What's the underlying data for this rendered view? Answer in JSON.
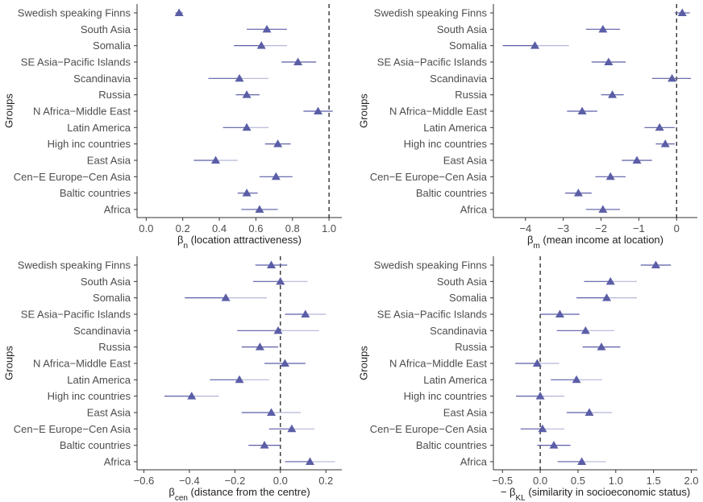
{
  "figure": {
    "y_axis_title": "Groups",
    "groups": [
      "Swedish speaking Finns",
      "South Asia",
      "Somalia",
      "SE Asia−Pacific Islands",
      "Scandinavia",
      "Russia",
      "N Africa−Middle East",
      "Latin America",
      "High inc countries",
      "East Asia",
      "Cen−E Europe−Cen Asia",
      "Baltic countries",
      "Africa"
    ],
    "colors": {
      "marker": "#5b5ea6",
      "ci_line": "#5b5ea6",
      "ci_line_light": "#b4b6d8"
    }
  },
  "chart_data": [
    {
      "type": "scatter",
      "panel": "top-left",
      "xlabel_prefix": "β",
      "xlabel_sub": "n",
      "xlabel_text": " (location attractiveness)",
      "ylabel": "Groups",
      "xlim": [
        -0.05,
        1.07
      ],
      "xticks": [
        0,
        0.2,
        0.4,
        0.6,
        0.8,
        1
      ],
      "xtick_labels": [
        "0.0",
        "0.2",
        "0.4",
        "0.6",
        "0.8",
        "1.0"
      ],
      "reference_line": 1.0,
      "categories": [
        "Swedish speaking Finns",
        "South Asia",
        "Somalia",
        "SE Asia−Pacific Islands",
        "Scandinavia",
        "Russia",
        "N Africa−Middle East",
        "Latin America",
        "High inc countries",
        "East Asia",
        "Cen−E Europe−Cen Asia",
        "Baltic countries",
        "Africa"
      ],
      "estimates": [
        0.18,
        0.66,
        0.63,
        0.83,
        0.51,
        0.55,
        0.94,
        0.55,
        0.72,
        0.38,
        0.71,
        0.55,
        0.62
      ],
      "lower": [
        0.16,
        0.55,
        0.48,
        0.74,
        0.34,
        0.49,
        0.86,
        0.42,
        0.65,
        0.26,
        0.62,
        0.5,
        0.52
      ],
      "upper": [
        0.2,
        0.77,
        0.77,
        0.93,
        0.67,
        0.62,
        1.02,
        0.67,
        0.79,
        0.5,
        0.8,
        0.61,
        0.72
      ]
    },
    {
      "type": "scatter",
      "panel": "top-right",
      "xlabel_prefix": "β",
      "xlabel_sub": "m",
      "xlabel_text": " (mean income at location)",
      "ylabel": "Groups",
      "xlim": [
        -4.85,
        0.55
      ],
      "xticks": [
        -4,
        -3,
        -2,
        -1,
        0
      ],
      "xtick_labels": [
        "−4",
        "−3",
        "−2",
        "−1",
        "0"
      ],
      "reference_line": 0,
      "categories": [
        "Swedish speaking Finns",
        "South Asia",
        "Somalia",
        "SE Asia−Pacific Islands",
        "Scandinavia",
        "Russia",
        "N Africa−Middle East",
        "Latin America",
        "High inc countries",
        "East Asia",
        "Cen−E Europe−Cen Asia",
        "Baltic countries",
        "Africa"
      ],
      "estimates": [
        0.15,
        -1.95,
        -3.75,
        -1.8,
        -0.12,
        -1.7,
        -2.5,
        -0.45,
        -0.3,
        -1.05,
        -1.75,
        -2.6,
        -1.95
      ],
      "lower": [
        -0.05,
        -2.4,
        -4.6,
        -2.25,
        -0.65,
        -2.0,
        -2.9,
        -0.85,
        -0.55,
        -1.45,
        -2.15,
        -2.95,
        -2.4
      ],
      "upper": [
        0.35,
        -1.5,
        -2.85,
        -1.35,
        0.38,
        -1.4,
        -2.1,
        -0.05,
        -0.05,
        -0.65,
        -1.35,
        -2.25,
        -1.5
      ]
    },
    {
      "type": "scatter",
      "panel": "bottom-left",
      "xlabel_prefix": "β",
      "xlabel_sub": "cen",
      "xlabel_text": " (distance from the centre)",
      "ylabel": "Groups",
      "xlim": [
        -0.63,
        0.27
      ],
      "xticks": [
        -0.6,
        -0.4,
        -0.2,
        0,
        0.2
      ],
      "xtick_labels": [
        "−0.6",
        "−0.4",
        "−0.2",
        "0.0",
        "0.2"
      ],
      "reference_line": 0,
      "categories": [
        "Swedish speaking Finns",
        "South Asia",
        "Somalia",
        "SE Asia−Pacific Islands",
        "Scandinavia",
        "Russia",
        "N Africa−Middle East",
        "Latin America",
        "High inc countries",
        "East Asia",
        "Cen−E Europe−Cen Asia",
        "Baltic countries",
        "Africa"
      ],
      "estimates": [
        -0.04,
        0.0,
        -0.24,
        0.11,
        -0.01,
        -0.09,
        0.02,
        -0.18,
        -0.39,
        -0.04,
        0.05,
        -0.07,
        0.13
      ],
      "lower": [
        -0.11,
        -0.12,
        -0.42,
        0.02,
        -0.19,
        -0.17,
        -0.07,
        -0.31,
        -0.51,
        -0.17,
        -0.05,
        -0.14,
        0.02
      ],
      "upper": [
        0.03,
        0.12,
        -0.06,
        0.2,
        0.17,
        -0.01,
        0.11,
        -0.05,
        -0.27,
        0.09,
        0.15,
        0.0,
        0.24
      ]
    },
    {
      "type": "scatter",
      "panel": "bottom-right",
      "xlabel_prefix": "− β",
      "xlabel_sub": "KL",
      "xlabel_text": " (similarity in socioeconomic status)",
      "ylabel": "Groups",
      "xlim": [
        -0.62,
        2.08
      ],
      "xticks": [
        -0.5,
        0,
        0.5,
        1,
        1.5,
        2
      ],
      "xtick_labels": [
        "−0.5",
        "0.0",
        "0.5",
        "1.0",
        "1.5",
        "2.0"
      ],
      "reference_line": 0,
      "categories": [
        "Swedish speaking Finns",
        "South Asia",
        "Somalia",
        "SE Asia−Pacific Islands",
        "Scandinavia",
        "Russia",
        "N Africa−Middle East",
        "Latin America",
        "High inc countries",
        "East Asia",
        "Cen−E Europe−Cen Asia",
        "Baltic countries",
        "Africa"
      ],
      "estimates": [
        1.53,
        0.93,
        0.88,
        0.26,
        0.6,
        0.81,
        -0.04,
        0.48,
        0.0,
        0.65,
        0.03,
        0.18,
        0.55
      ],
      "lower": [
        1.33,
        0.58,
        0.48,
        0.0,
        0.22,
        0.56,
        -0.33,
        0.14,
        -0.32,
        0.35,
        -0.26,
        -0.04,
        0.23
      ],
      "upper": [
        1.73,
        1.28,
        1.28,
        0.52,
        0.98,
        1.06,
        0.25,
        0.82,
        0.32,
        0.95,
        0.32,
        0.4,
        0.87
      ]
    }
  ]
}
